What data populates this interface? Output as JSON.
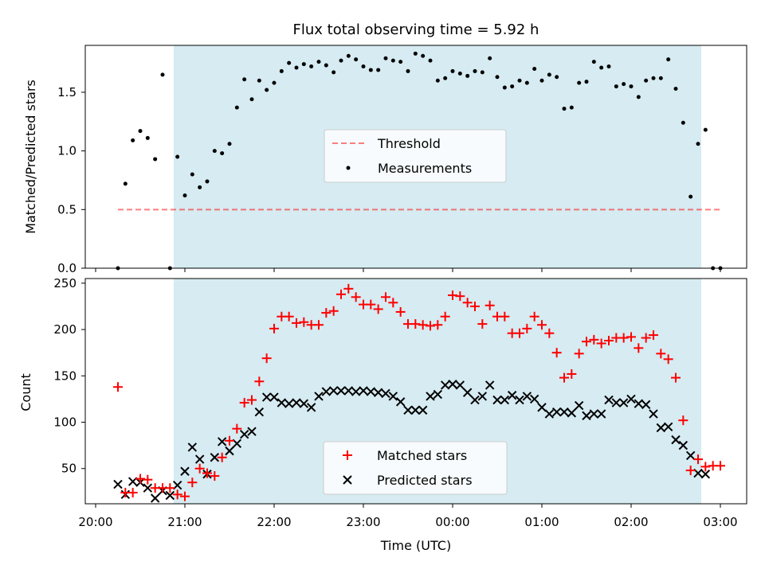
{
  "title": "Flux total observing time = 5.92 h",
  "xlabel": "Time (UTC)",
  "x_ticks": [
    "20:00",
    "21:00",
    "22:00",
    "23:00",
    "00:00",
    "01:00",
    "02:00",
    "03:00"
  ],
  "colors": {
    "band": "#add8e6",
    "threshold": "#ff0000",
    "measurement": "#000000",
    "matched": "#ff0000",
    "predicted": "#000000"
  },
  "chart_data": [
    {
      "type": "scatter",
      "ylabel": "Matched/Predicted stars",
      "xlim": [
        "20:00",
        "03:00"
      ],
      "ylim": [
        0,
        1.9
      ],
      "y_ticks": [
        "0.0",
        "0.5",
        "1.0",
        "1.5"
      ],
      "observing_window": [
        "20:54",
        "22:48 +1d equiv 02:48"
      ],
      "legend": {
        "placement": "center",
        "entries": [
          "Threshold",
          "Measurements"
        ]
      },
      "threshold": {
        "name": "Threshold",
        "value": 0.5,
        "x_range": [
          "20:15",
          "03:00"
        ],
        "style": "dashed"
      },
      "series": [
        {
          "name": "Measurements",
          "x": [
            "20:15",
            "20:20",
            "20:25",
            "20:30",
            "20:35",
            "20:40",
            "20:45",
            "20:50",
            "20:55",
            "21:00",
            "21:05",
            "21:10",
            "21:15",
            "21:20",
            "21:25",
            "21:30",
            "21:35",
            "21:40",
            "21:45",
            "21:50",
            "21:55",
            "22:00",
            "22:05",
            "22:10",
            "22:15",
            "22:20",
            "22:25",
            "22:30",
            "22:35",
            "22:40",
            "22:45",
            "22:50",
            "22:55",
            "23:00",
            "23:05",
            "23:10",
            "23:15",
            "23:20",
            "23:25",
            "23:30",
            "23:35",
            "23:40",
            "23:45",
            "23:50",
            "23:55",
            "00:00",
            "00:05",
            "00:10",
            "00:15",
            "00:20",
            "00:25",
            "00:30",
            "00:35",
            "00:40",
            "00:45",
            "00:50",
            "00:55",
            "01:00",
            "01:05",
            "01:10",
            "01:15",
            "01:20",
            "01:25",
            "01:30",
            "01:35",
            "01:40",
            "01:45",
            "01:50",
            "01:55",
            "02:00",
            "02:05",
            "02:10",
            "02:15",
            "02:20",
            "02:25",
            "02:30",
            "02:35",
            "02:40",
            "02:45",
            "02:50",
            "02:55",
            "03:00"
          ],
          "y": [
            0.0,
            0.72,
            1.09,
            1.17,
            1.11,
            0.93,
            1.65,
            0.0,
            0.95,
            0.62,
            0.8,
            0.69,
            0.74,
            1.0,
            0.98,
            1.06,
            1.37,
            1.61,
            1.44,
            1.6,
            1.52,
            1.58,
            1.68,
            1.75,
            1.71,
            1.74,
            1.72,
            1.76,
            1.73,
            1.67,
            1.77,
            1.81,
            1.78,
            1.72,
            1.69,
            1.69,
            1.79,
            1.77,
            1.76,
            1.68,
            1.83,
            1.81,
            1.77,
            1.6,
            1.62,
            1.68,
            1.66,
            1.64,
            1.68,
            1.67,
            1.79,
            1.63,
            1.54,
            1.55,
            1.6,
            1.58,
            1.7,
            1.6,
            1.65,
            1.63,
            1.36,
            1.37,
            1.58,
            1.59,
            1.76,
            1.71,
            1.72,
            1.55,
            1.57,
            1.55,
            1.46,
            1.6,
            1.62,
            1.62,
            1.78,
            1.53,
            1.24,
            0.61,
            1.06,
            1.18,
            0.0,
            0.0
          ]
        }
      ]
    },
    {
      "type": "scatter",
      "ylabel": "Count",
      "xlabel": "Time (UTC)",
      "xlim": [
        "20:00",
        "03:00"
      ],
      "ylim": [
        12,
        255
      ],
      "y_ticks": [
        "50",
        "100",
        "150",
        "200",
        "250"
      ],
      "legend": {
        "placement": "lower center",
        "entries": [
          "Matched stars",
          "Predicted stars"
        ]
      },
      "series": [
        {
          "name": "Matched stars",
          "marker": "+",
          "x": [
            "20:15",
            "20:20",
            "20:25",
            "20:30",
            "20:35",
            "20:40",
            "20:45",
            "20:50",
            "20:55",
            "21:00",
            "21:05",
            "21:10",
            "21:15",
            "21:20",
            "21:25",
            "21:30",
            "21:35",
            "21:40",
            "21:45",
            "21:50",
            "21:55",
            "22:00",
            "22:05",
            "22:10",
            "22:15",
            "22:20",
            "22:25",
            "22:30",
            "22:35",
            "22:40",
            "22:45",
            "22:50",
            "22:55",
            "23:00",
            "23:05",
            "23:10",
            "23:15",
            "23:20",
            "23:25",
            "23:30",
            "23:35",
            "23:40",
            "23:45",
            "23:50",
            "23:55",
            "00:00",
            "00:05",
            "00:10",
            "00:15",
            "00:20",
            "00:25",
            "00:30",
            "00:35",
            "00:40",
            "00:45",
            "00:50",
            "00:55",
            "01:00",
            "01:05",
            "01:10",
            "01:15",
            "01:20",
            "01:25",
            "01:30",
            "01:35",
            "01:40",
            "01:45",
            "01:50",
            "01:55",
            "02:00",
            "02:05",
            "02:10",
            "02:15",
            "02:20",
            "02:25",
            "02:30",
            "02:35",
            "02:40",
            "02:45",
            "02:50",
            "02:55",
            "03:00"
          ],
          "y": [
            138,
            24,
            24,
            39,
            38,
            29,
            29,
            29,
            22,
            20,
            35,
            50,
            45,
            42,
            62,
            80,
            93,
            121,
            124,
            144,
            169,
            201,
            214,
            214,
            207,
            208,
            205,
            205,
            218,
            220,
            238,
            244,
            235,
            227,
            227,
            222,
            235,
            229,
            219,
            206,
            206,
            205,
            204,
            205,
            214,
            237,
            236,
            229,
            225,
            206,
            226,
            214,
            214,
            196,
            196,
            201,
            214,
            205,
            196,
            175,
            148,
            152,
            174,
            187,
            189,
            185,
            188,
            191,
            191,
            192,
            180,
            191,
            194,
            174,
            168,
            148,
            102,
            48,
            60,
            52,
            53,
            53
          ]
        },
        {
          "name": "Predicted stars",
          "marker": "x",
          "x": [
            "20:15",
            "20:20",
            "20:25",
            "20:30",
            "20:35",
            "20:40",
            "20:45",
            "20:50",
            "20:55",
            "21:00",
            "21:05",
            "21:10",
            "21:15",
            "21:20",
            "21:25",
            "21:30",
            "21:35",
            "21:40",
            "21:45",
            "21:50",
            "21:55",
            "22:00",
            "22:05",
            "22:10",
            "22:15",
            "22:20",
            "22:25",
            "22:30",
            "22:35",
            "22:40",
            "22:45",
            "22:50",
            "22:55",
            "23:00",
            "23:05",
            "23:10",
            "23:15",
            "23:20",
            "23:25",
            "23:30",
            "23:35",
            "23:40",
            "23:45",
            "23:50",
            "23:55",
            "00:00",
            "00:05",
            "00:10",
            "00:15",
            "00:20",
            "00:25",
            "00:30",
            "00:35",
            "00:40",
            "00:45",
            "00:50",
            "00:55",
            "01:00",
            "01:05",
            "01:10",
            "01:15",
            "01:20",
            "01:25",
            "01:30",
            "01:35",
            "01:40",
            "01:45",
            "01:50",
            "01:55",
            "02:00",
            "02:05",
            "02:10",
            "02:15",
            "02:20",
            "02:25",
            "02:30",
            "02:35",
            "02:40",
            "02:45",
            "02:50"
          ],
          "y": [
            33,
            22,
            36,
            35,
            29,
            18,
            26,
            21,
            32,
            47,
            73,
            60,
            44,
            62,
            79,
            69,
            77,
            87,
            90,
            111,
            127,
            127,
            121,
            120,
            121,
            120,
            116,
            128,
            133,
            134,
            134,
            134,
            133,
            134,
            133,
            132,
            131,
            128,
            122,
            113,
            113,
            113,
            128,
            130,
            140,
            141,
            140,
            132,
            124,
            128,
            140,
            124,
            124,
            129,
            124,
            128,
            125,
            116,
            109,
            111,
            111,
            110,
            118,
            107,
            109,
            109,
            124,
            121,
            121,
            125,
            120,
            119,
            109,
            94,
            95,
            81,
            75,
            64,
            45,
            44
          ]
        }
      ]
    }
  ]
}
